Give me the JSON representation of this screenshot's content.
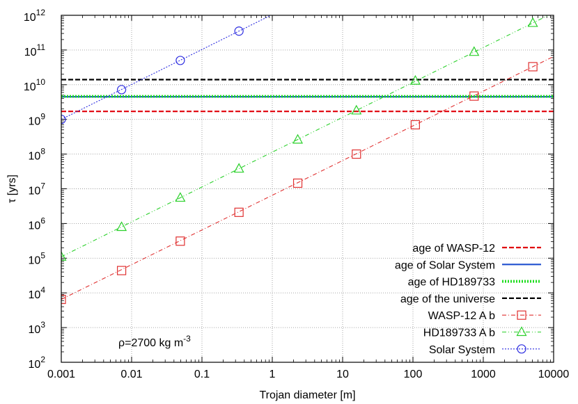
{
  "chart_data": {
    "type": "line",
    "x_scale": "log",
    "y_scale": "log",
    "xlabel": "Trojan diameter [m]",
    "ylabel": "τ [yrs]",
    "xlim": [
      0.001,
      10000
    ],
    "ylim": [
      100,
      1000000000000
    ],
    "x_ticks": [
      {
        "value": 0.001,
        "label": "0.001"
      },
      {
        "value": 0.01,
        "label": "0.01"
      },
      {
        "value": 0.1,
        "label": "0.1"
      },
      {
        "value": 1,
        "label": "1"
      },
      {
        "value": 10,
        "label": "10"
      },
      {
        "value": 100,
        "label": "100"
      },
      {
        "value": 1000,
        "label": "1000"
      },
      {
        "value": 10000,
        "label": "10000"
      }
    ],
    "y_ticks": [
      {
        "value": 100,
        "base": "10",
        "exp": "2"
      },
      {
        "value": 1000,
        "base": "10",
        "exp": "3"
      },
      {
        "value": 10000,
        "base": "10",
        "exp": "4"
      },
      {
        "value": 100000,
        "base": "10",
        "exp": "5"
      },
      {
        "value": 1000000,
        "base": "10",
        "exp": "6"
      },
      {
        "value": 10000000,
        "base": "10",
        "exp": "7"
      },
      {
        "value": 100000000,
        "base": "10",
        "exp": "8"
      },
      {
        "value": 1000000000,
        "base": "10",
        "exp": "9"
      },
      {
        "value": 10000000000,
        "base": "10",
        "exp": "10"
      },
      {
        "value": 100000000000,
        "base": "10",
        "exp": "11"
      },
      {
        "value": 1000000000000,
        "base": "10",
        "exp": "12"
      }
    ],
    "grid": true,
    "legend_position": "bottom-right",
    "annotation": {
      "text": "ρ=2700 kg m",
      "sup": "-3"
    },
    "horizontal_lines": [
      {
        "name": "age of WASP-12",
        "value": 1700000000,
        "color": "#e0000a",
        "style": "dashed"
      },
      {
        "name": "age of Solar System",
        "value": 4500000000,
        "color": "#1f4fcf",
        "style": "solid"
      },
      {
        "name": "age of HD189733",
        "value": 4600000000,
        "color": "#22dd22",
        "style": "dotted"
      },
      {
        "name": "age of the universe",
        "value": 14000000000,
        "color": "#000000",
        "style": "dashed"
      }
    ],
    "series": [
      {
        "name": "WASP-12 A b",
        "color": "#e03030",
        "marker": "square",
        "line_style": "dash-dot",
        "x": [
          0.001,
          0.0072,
          0.0492,
          0.336,
          2.3,
          15.7,
          108,
          740,
          5060
        ],
        "y": [
          6500,
          44000,
          310000,
          2100000,
          14500000,
          100000000,
          700000000,
          4700000000,
          33000000000
        ]
      },
      {
        "name": "HD189733 A b",
        "color": "#2ad02a",
        "marker": "triangle",
        "line_style": "dash-dot-dot",
        "x": [
          0.001,
          0.0072,
          0.0492,
          0.336,
          2.3,
          15.7,
          108,
          740,
          5060
        ],
        "y": [
          110000,
          790000,
          5500000,
          38000000,
          260000000,
          1800000000,
          13000000000,
          88000000000,
          600000000000
        ]
      },
      {
        "name": "Solar System",
        "color": "#2a2ae0",
        "marker": "circle",
        "line_style": "dotted",
        "x": [
          0.001,
          0.0072,
          0.0492,
          0.336
        ],
        "y": [
          1000000000,
          7200000000,
          50000000000,
          350000000000
        ]
      }
    ]
  }
}
